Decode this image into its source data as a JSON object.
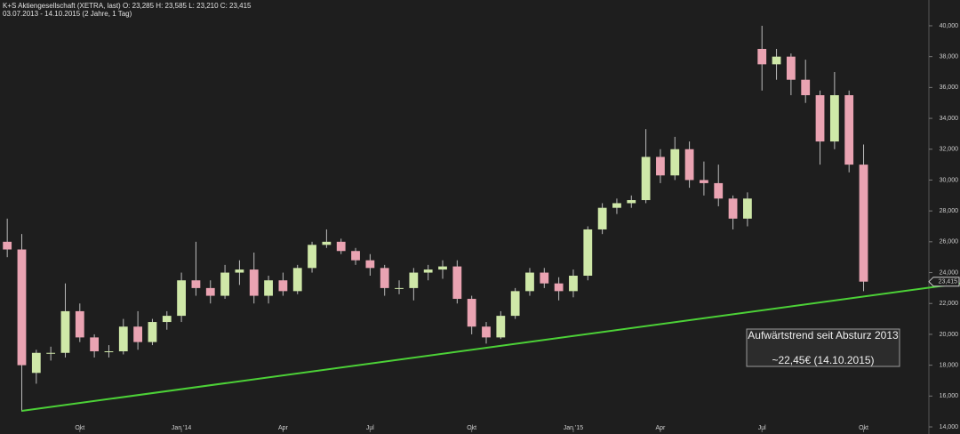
{
  "chart_data": {
    "type": "candlestick",
    "title": "K+S Aktiengesellschaft (XETRA, last)  O: 23,285  H: 23,585  L: 23,210  C: 23,415",
    "subtitle": "03.07.2013 - 14.10.2015 (2 Jahre, 1 Tag)",
    "categories": [
      null,
      null,
      null,
      null,
      null,
      "Okt",
      null,
      null,
      null,
      null,
      null,
      null,
      "Jan '14",
      null,
      null,
      null,
      null,
      null,
      null,
      "Apr",
      null,
      null,
      null,
      null,
      null,
      "Jul",
      null,
      null,
      null,
      null,
      null,
      null,
      "Okt",
      null,
      null,
      null,
      null,
      null,
      null,
      "Jan '15",
      null,
      null,
      null,
      null,
      null,
      "Apr",
      null,
      null,
      null,
      null,
      null,
      null,
      "Jul",
      null,
      null,
      null,
      null,
      null,
      null,
      "Okt",
      null,
      null,
      null,
      null
    ],
    "open": [
      26000,
      25500,
      17500,
      18800,
      18800,
      21500,
      19800,
      18900,
      18900,
      20500,
      19500,
      20800,
      21200,
      23500,
      23000,
      22500,
      24000,
      24200,
      22500,
      23500,
      22800,
      24300,
      25800,
      26000,
      25400,
      24800,
      24300,
      23000,
      23000,
      24000,
      24200,
      24400,
      22300,
      20500,
      19800,
      21200,
      22800,
      24000,
      23300,
      22800,
      23800,
      26800,
      28200,
      28500,
      28700,
      31500,
      30300,
      32000,
      30000,
      29800,
      28800,
      27500,
      38500,
      37500,
      38000,
      36500,
      35500,
      32500,
      35500,
      31000,
      null,
      null,
      null,
      null
    ],
    "high": [
      27500,
      26500,
      19000,
      19200,
      23300,
      22000,
      20000,
      19300,
      21000,
      21500,
      21000,
      21500,
      24000,
      26000,
      23500,
      24500,
      24800,
      25300,
      23800,
      24000,
      24500,
      26000,
      26800,
      26200,
      25600,
      25200,
      24500,
      23500,
      24300,
      24500,
      24800,
      24800,
      22500,
      20800,
      21500,
      23000,
      24300,
      24300,
      23700,
      24200,
      27000,
      28500,
      28800,
      29000,
      33300,
      32000,
      32800,
      32500,
      31200,
      31000,
      29000,
      29200,
      40000,
      38500,
      38200,
      37800,
      35800,
      37000,
      35800,
      32300,
      null,
      null,
      null,
      null
    ],
    "low": [
      25000,
      15000,
      16800,
      18300,
      18500,
      19500,
      18500,
      18500,
      18700,
      19000,
      19300,
      20300,
      20800,
      22500,
      22000,
      22300,
      23200,
      22000,
      22000,
      22500,
      22600,
      24000,
      25600,
      25200,
      24500,
      23800,
      22500,
      22600,
      22200,
      23500,
      23600,
      22000,
      20000,
      19400,
      19700,
      21000,
      22500,
      23000,
      22200,
      22400,
      23500,
      26500,
      27800,
      28200,
      28500,
      29800,
      30000,
      29500,
      29000,
      28300,
      26800,
      27000,
      35800,
      36500,
      35500,
      35000,
      31000,
      32000,
      30500,
      22800,
      null,
      null,
      null,
      null
    ],
    "close": [
      25500,
      18000,
      18800,
      18800,
      21500,
      19800,
      18900,
      18900,
      20500,
      19500,
      20800,
      21200,
      23500,
      23000,
      22500,
      24000,
      24200,
      22500,
      23500,
      22800,
      24300,
      25800,
      26000,
      25400,
      24800,
      24300,
      23000,
      23000,
      24000,
      24200,
      24400,
      22300,
      20500,
      19800,
      21200,
      22800,
      24000,
      23300,
      22800,
      23800,
      26800,
      28200,
      28500,
      28700,
      31500,
      30300,
      32000,
      30000,
      29800,
      28800,
      27500,
      28800,
      37500,
      38000,
      36500,
      35500,
      32500,
      35500,
      31000,
      23415,
      null,
      null,
      null,
      null
    ],
    "up_color": "#cfe8a8",
    "down_color": "#eaa3b2",
    "ylim": [
      13540,
      41670
    ],
    "yticks": [
      {
        "value": 14000,
        "label": "14,000"
      },
      {
        "value": 16000,
        "label": "16,000"
      },
      {
        "value": 18000,
        "label": "18,000"
      },
      {
        "value": 20000,
        "label": "20,000"
      },
      {
        "value": 22000,
        "label": "22,000"
      },
      {
        "value": 24000,
        "label": "24,000"
      },
      {
        "value": 26000,
        "label": "26,000"
      },
      {
        "value": 28000,
        "label": "28,000"
      },
      {
        "value": 30000,
        "label": "30,000"
      },
      {
        "value": 32000,
        "label": "32,000"
      },
      {
        "value": 34000,
        "label": "34,000"
      },
      {
        "value": 36000,
        "label": "36,000"
      },
      {
        "value": 38000,
        "label": "38,000"
      },
      {
        "value": 40000,
        "label": "40,000"
      }
    ],
    "last_price": {
      "value": 23415,
      "label": "23,415"
    },
    "trendline": {
      "start": 15040,
      "end": 22450,
      "color": "#4cd137"
    },
    "annotation": {
      "line1": "Aufwärtstrend seit Absturz 2013",
      "line2": "~22,45€ (14.10.2015)"
    }
  }
}
